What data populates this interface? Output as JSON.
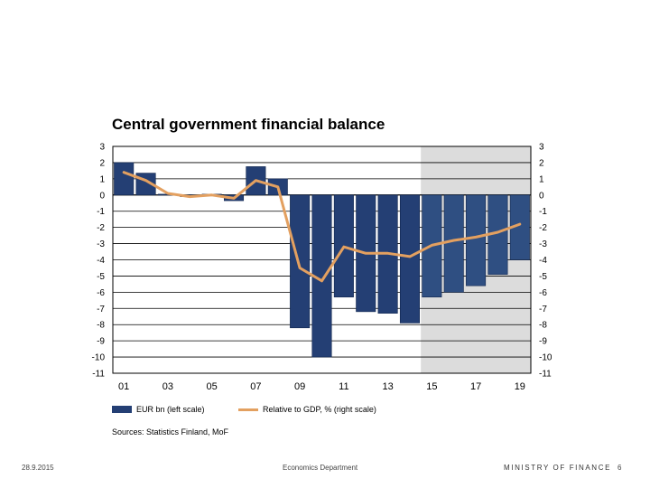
{
  "chart_data": {
    "type": "bar+line",
    "title": "Central government financial balance",
    "x_tick_labels": [
      "01",
      "03",
      "05",
      "07",
      "09",
      "11",
      "13",
      "15",
      "17",
      "19"
    ],
    "categories": [
      "2001",
      "2002",
      "2003",
      "2004",
      "2005",
      "2006",
      "2007",
      "2008",
      "2009",
      "2010",
      "2011",
      "2012",
      "2013",
      "2014",
      "2015",
      "2016",
      "2017",
      "2018",
      "2019"
    ],
    "forecast_from": "2015",
    "ylim_left": [
      -11,
      3
    ],
    "ylim_right": [
      -11,
      3
    ],
    "y_ticks": [
      3,
      2,
      1,
      0,
      -1,
      -2,
      -3,
      -4,
      -5,
      -6,
      -7,
      -8,
      -9,
      -10,
      -11
    ],
    "series": [
      {
        "name": "EUR bn (left scale)",
        "kind": "bar",
        "axis": "left",
        "values": [
          2.0,
          1.35,
          0.05,
          -0.1,
          0.05,
          -0.35,
          1.75,
          1.0,
          -8.2,
          -10.0,
          -6.3,
          -7.2,
          -7.3,
          -7.9,
          -6.3,
          -6.0,
          -5.6,
          -4.9,
          -4.0
        ]
      },
      {
        "name": "Relative to GDP, % (right scale)",
        "kind": "line",
        "axis": "right",
        "values": [
          1.4,
          0.9,
          0.1,
          -0.1,
          0.0,
          -0.2,
          0.9,
          0.5,
          -4.5,
          -5.3,
          -3.2,
          -3.6,
          -3.6,
          -3.8,
          -3.1,
          -2.8,
          -2.6,
          -2.3,
          -1.8
        ]
      }
    ],
    "source": "Sources: Statistics Finland, MoF"
  },
  "colors": {
    "bar": "#243f74",
    "bar_forecast": "#2f4f82",
    "line": "#e3a060",
    "forecast_shade": "#dcdcdc",
    "grid": "#000000"
  },
  "footer": {
    "date": "28.9.2015",
    "department": "Economics Department",
    "ministry": "MINISTRY OF FINANCE",
    "page": "6"
  }
}
